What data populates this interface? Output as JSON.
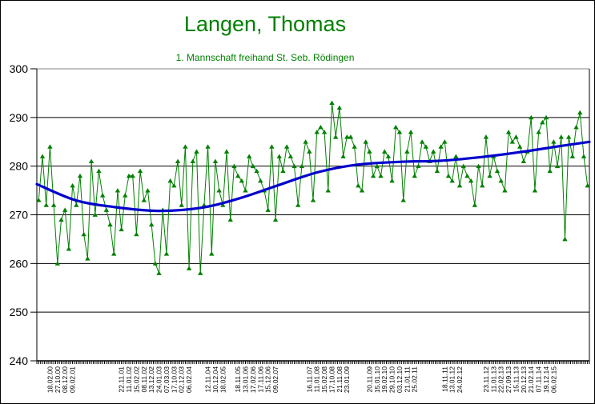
{
  "header": {
    "title": "Langen, Thomas",
    "subtitle": "1. Mannschaft freihand St. Seb. Rödingen",
    "title_color": "#008000"
  },
  "colors": {
    "series_green": "#008000",
    "trend_blue": "#0000cc",
    "grid": "#000000",
    "plot_top_border": "#808080",
    "axis": "#000000",
    "tick_label": "#000000"
  },
  "chart_data": {
    "type": "line",
    "title": "Langen, Thomas",
    "subtitle": "1. Mannschaft freihand St. Seb. Rödingen",
    "ylabel": "",
    "xlabel": "",
    "ylim": [
      240,
      300
    ],
    "yticks": [
      240,
      250,
      260,
      270,
      280,
      290,
      300
    ],
    "grid": true,
    "legend_position": "none",
    "marker": "triangle",
    "series": [
      {
        "name": "results",
        "color": "#008000",
        "values": [
          273,
          282,
          272,
          284,
          272,
          260,
          269,
          271,
          263,
          276,
          272,
          278,
          266,
          261,
          281,
          270,
          279,
          274,
          271,
          268,
          262,
          275,
          267,
          274,
          278,
          278,
          266,
          279,
          273,
          275,
          268,
          260,
          258,
          271,
          262,
          277,
          276,
          281,
          272,
          284,
          259,
          281,
          283,
          258,
          272,
          284,
          262,
          281,
          275,
          272,
          283,
          269,
          280,
          278,
          277,
          275,
          282,
          280,
          279,
          277,
          275,
          271,
          284,
          269,
          282,
          279,
          284,
          282,
          280,
          272,
          280,
          285,
          283,
          273,
          287,
          288,
          287,
          275,
          293,
          286,
          292,
          282,
          286,
          286,
          284,
          276,
          275,
          285,
          283,
          278,
          280,
          278,
          283,
          282,
          277,
          288,
          287,
          273,
          283,
          287,
          278,
          280,
          285,
          284,
          281,
          283,
          279,
          284,
          285,
          278,
          277,
          282,
          276,
          280,
          278,
          277,
          272,
          280,
          276,
          286,
          278,
          282,
          279,
          277,
          275,
          287,
          285,
          286,
          284,
          281,
          283,
          290,
          275,
          287,
          289,
          290,
          279,
          285,
          280,
          286,
          265,
          286,
          282,
          288,
          291,
          282,
          276
        ]
      },
      {
        "name": "trend",
        "color": "#0000cc",
        "points_frac_value": [
          [
            0,
            276.3
          ],
          [
            0.07,
            273.0
          ],
          [
            0.14,
            271.6
          ],
          [
            0.22,
            270.8
          ],
          [
            0.3,
            271.5
          ],
          [
            0.37,
            273.5
          ],
          [
            0.44,
            276.2
          ],
          [
            0.51,
            278.8
          ],
          [
            0.58,
            280.3
          ],
          [
            0.66,
            280.9
          ],
          [
            0.73,
            281.1
          ],
          [
            0.8,
            281.8
          ],
          [
            0.87,
            282.8
          ],
          [
            0.94,
            284.0
          ],
          [
            1,
            285.0
          ]
        ]
      }
    ],
    "x_tick_labels": [
      {
        "i": 3,
        "label": "18.02.00"
      },
      {
        "i": 5,
        "label": "27.10.00"
      },
      {
        "i": 7,
        "label": "08.12.00"
      },
      {
        "i": 9,
        "label": "09.02.01"
      },
      {
        "i": 22,
        "label": "22.11.01"
      },
      {
        "i": 24,
        "label": "11.01.02"
      },
      {
        "i": 26,
        "label": "15.02.02"
      },
      {
        "i": 28,
        "label": "08.11.02"
      },
      {
        "i": 30,
        "label": "13.12.02"
      },
      {
        "i": 32,
        "label": "24.01.03"
      },
      {
        "i": 34,
        "label": "07.03.03"
      },
      {
        "i": 36,
        "label": "17.10.03"
      },
      {
        "i": 38,
        "label": "02.12.03"
      },
      {
        "i": 40,
        "label": "06.02.04"
      },
      {
        "i": 45,
        "label": "12.11.04"
      },
      {
        "i": 47,
        "label": "10.12.04"
      },
      {
        "i": 49,
        "label": "18.02.05"
      },
      {
        "i": 53,
        "label": "18.11.05"
      },
      {
        "i": 55,
        "label": "13.01.06"
      },
      {
        "i": 57,
        "label": "17.02.06"
      },
      {
        "i": 59,
        "label": "17.11.06"
      },
      {
        "i": 61,
        "label": "15.12.06"
      },
      {
        "i": 63,
        "label": "09.02.07"
      },
      {
        "i": 72,
        "label": "16.11.07"
      },
      {
        "i": 74,
        "label": "11.01.08"
      },
      {
        "i": 76,
        "label": "15.02.08"
      },
      {
        "i": 78,
        "label": "17.10.08"
      },
      {
        "i": 80,
        "label": "21.11.08"
      },
      {
        "i": 82,
        "label": "23.01.09"
      },
      {
        "i": 88,
        "label": "20.11.09"
      },
      {
        "i": 90,
        "label": "15.01.10"
      },
      {
        "i": 92,
        "label": "19.02.10"
      },
      {
        "i": 94,
        "label": "29.10.10"
      },
      {
        "i": 96,
        "label": "03.12.10"
      },
      {
        "i": 98,
        "label": "21.01.11"
      },
      {
        "i": 100,
        "label": "25.02.11"
      },
      {
        "i": 108,
        "label": "18.11.11"
      },
      {
        "i": 110,
        "label": "13.01.12"
      },
      {
        "i": 112,
        "label": "24.02.12"
      },
      {
        "i": 119,
        "label": "23.11.12"
      },
      {
        "i": 121,
        "label": "11.01.13"
      },
      {
        "i": 123,
        "label": "22.02.13"
      },
      {
        "i": 125,
        "label": "27.09.13"
      },
      {
        "i": 127,
        "label": "15.11.13"
      },
      {
        "i": 129,
        "label": "20.12.13"
      },
      {
        "i": 131,
        "label": "21.02.14"
      },
      {
        "i": 133,
        "label": "07.11.14"
      },
      {
        "i": 135,
        "label": "19.12.14"
      },
      {
        "i": 137,
        "label": "06.02.15"
      }
    ]
  }
}
